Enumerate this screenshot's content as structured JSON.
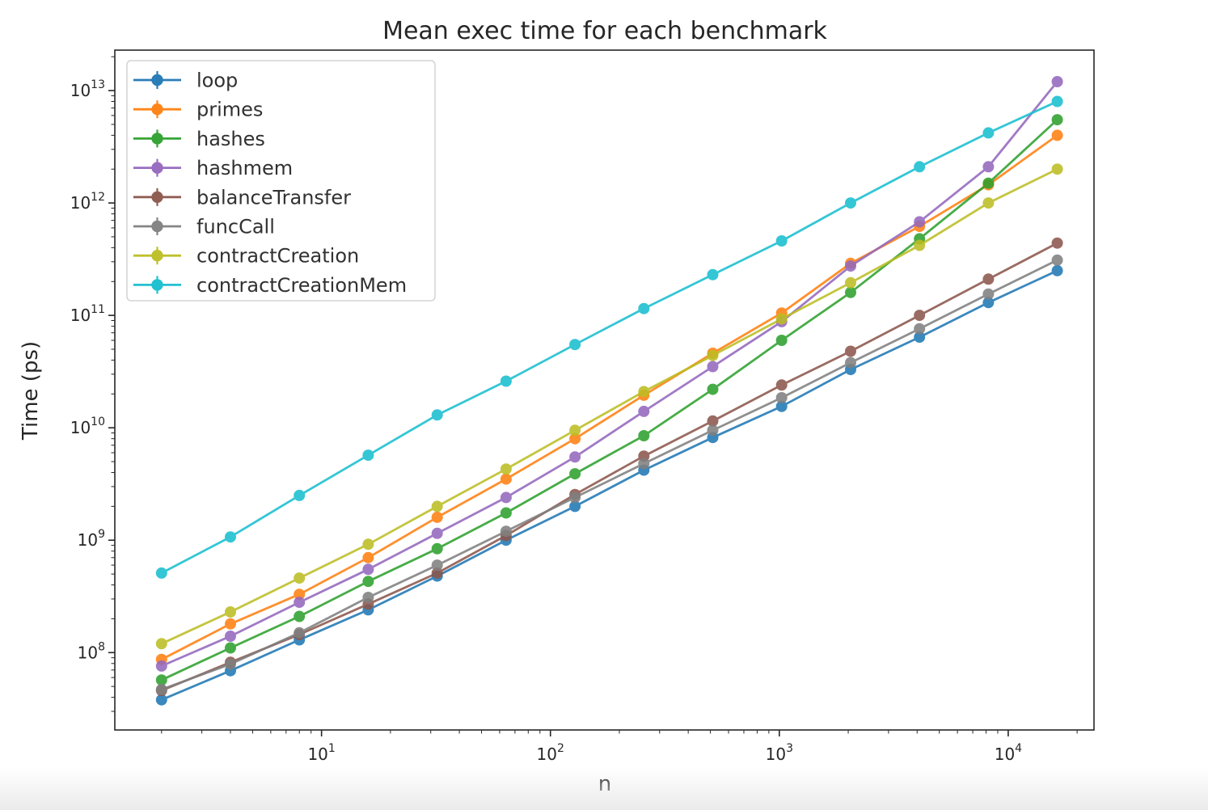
{
  "chart_data": {
    "type": "line",
    "title": "Mean exec time for each benchmark",
    "xlabel": "n",
    "ylabel": "Time (ps)",
    "x_scale": "log",
    "y_scale": "log",
    "grid": false,
    "legend_position": "upper left",
    "marker": "circle-with-errorbar",
    "xlim": [
      1.25,
      23700
    ],
    "ylim": [
      20500000,
      22900000000000
    ],
    "x_tick_exponents": [
      1,
      2,
      3,
      4
    ],
    "y_tick_exponents": [
      8,
      9,
      10,
      11,
      12,
      13
    ],
    "axis_color": "#262626",
    "x": [
      2,
      4,
      8,
      16,
      32,
      64,
      128,
      256,
      512,
      1024,
      2048,
      4096,
      8192,
      16384
    ],
    "series": [
      {
        "name": "loop",
        "color": "#1f77b4",
        "values": [
          38000000.0,
          69000000.0,
          130000000.0,
          240000000.0,
          480000000.0,
          1000000000.0,
          2000000000.0,
          4200000000.0,
          8200000000.0,
          15500000000.0,
          33000000000.0,
          64000000000.0,
          130000000000.0,
          250000000000.0
        ]
      },
      {
        "name": "primes",
        "color": "#ff7f0e",
        "values": [
          87000000.0,
          180000000.0,
          330000000.0,
          700000000.0,
          1600000000.0,
          3500000000.0,
          8000000000.0,
          19500000000.0,
          46000000000.0,
          105000000000.0,
          290000000000.0,
          620000000000.0,
          1450000000000.0,
          4000000000000.0
        ]
      },
      {
        "name": "hashes",
        "color": "#2ca02c",
        "values": [
          57000000.0,
          110000000.0,
          210000000.0,
          430000000.0,
          840000000.0,
          1750000000.0,
          3900000000.0,
          8500000000.0,
          22000000000.0,
          60000000000.0,
          160000000000.0,
          480000000000.0,
          1500000000000.0,
          5500000000000.0
        ]
      },
      {
        "name": "hashmem",
        "color": "#9467bd",
        "values": [
          76000000.0,
          140000000.0,
          280000000.0,
          550000000.0,
          1150000000.0,
          2400000000.0,
          5500000000.0,
          14000000000.0,
          35000000000.0,
          88000000000.0,
          275000000000.0,
          680000000000.0,
          2100000000000.0,
          12000000000000.0
        ]
      },
      {
        "name": "balanceTransfer",
        "color": "#8c564b",
        "values": [
          46000000.0,
          82000000.0,
          145000000.0,
          270000000.0,
          510000000.0,
          1100000000.0,
          2550000000.0,
          5600000000.0,
          11500000000.0,
          24000000000.0,
          48000000000.0,
          100000000000.0,
          210000000000.0,
          440000000000.0
        ]
      },
      {
        "name": "funcCall",
        "color": "#7f7f7f",
        "values": [
          47000000.0,
          79000000.0,
          150000000.0,
          310000000.0,
          600000000.0,
          1200000000.0,
          2400000000.0,
          4800000000.0,
          9500000000.0,
          18500000000.0,
          38000000000.0,
          76000000000.0,
          155000000000.0,
          310000000000.0
        ]
      },
      {
        "name": "contractCreation",
        "color": "#bcbd22",
        "values": [
          120000000.0,
          230000000.0,
          460000000.0,
          920000000.0,
          2000000000.0,
          4300000000.0,
          9500000000.0,
          21000000000.0,
          44000000000.0,
          93000000000.0,
          195000000000.0,
          420000000000.0,
          1000000000000.0,
          2000000000000.0
        ]
      },
      {
        "name": "contractCreationMem",
        "color": "#17becf",
        "values": [
          510000000.0,
          1070000000.0,
          2500000000.0,
          5700000000.0,
          13000000000.0,
          26000000000.0,
          55000000000.0,
          115000000000.0,
          230000000000.0,
          460000000000.0,
          1000000000000.0,
          2100000000000.0,
          4200000000000.0,
          8000000000000.0
        ]
      }
    ]
  }
}
